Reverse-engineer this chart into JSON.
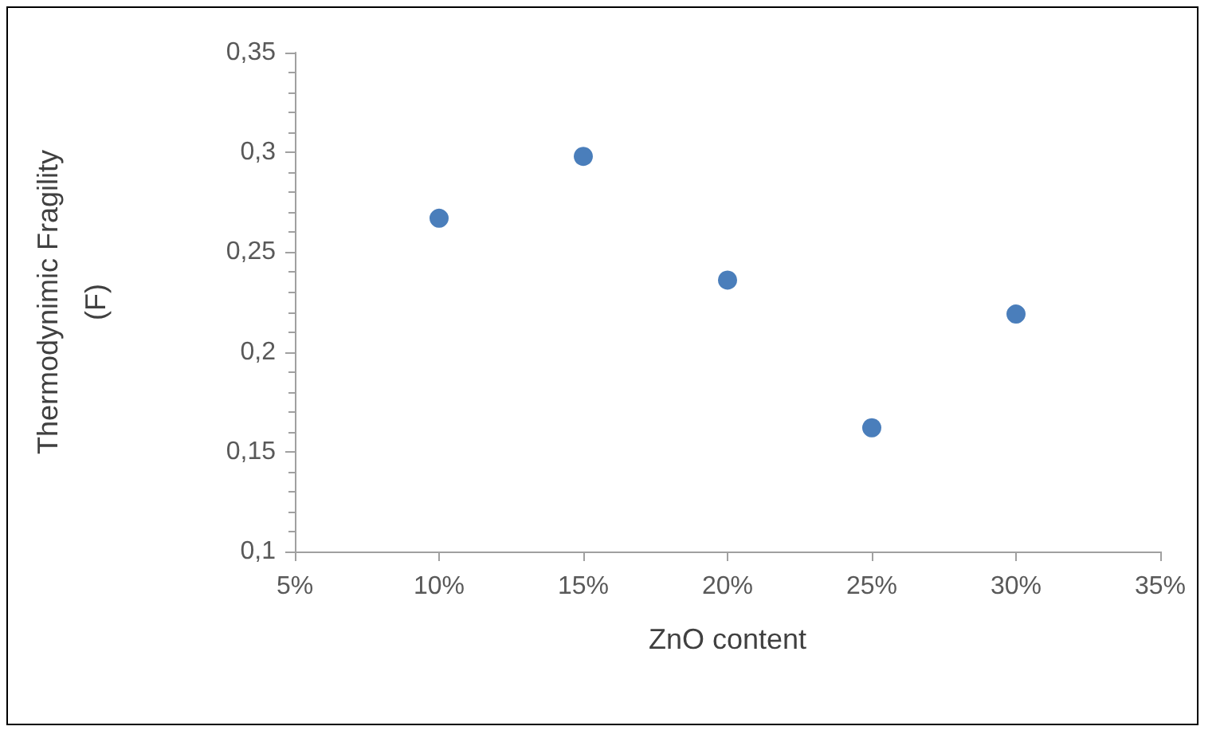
{
  "chart_data": {
    "type": "scatter",
    "xlabel": "ZnO content",
    "ylabel": "Thermodynimic Fragility\n(F)",
    "x": [
      10,
      15,
      20,
      25,
      30
    ],
    "series": [
      {
        "color": "#4a7ebb",
        "values": [
          0.267,
          0.298,
          0.236,
          0.162,
          0.219
        ]
      }
    ],
    "xlim": [
      5,
      35
    ],
    "xticks": [
      {
        "value": 5,
        "label": "5%"
      },
      {
        "value": 10,
        "label": "10%"
      },
      {
        "value": 15,
        "label": "15%"
      },
      {
        "value": 20,
        "label": "20%"
      },
      {
        "value": 25,
        "label": "25%"
      },
      {
        "value": 30,
        "label": "30%"
      },
      {
        "value": 35,
        "label": "35%"
      }
    ],
    "ylim": [
      0.1,
      0.35
    ],
    "yticks": [
      {
        "value": 0.1,
        "label": "0,1"
      },
      {
        "value": 0.15,
        "label": "0,15"
      },
      {
        "value": 0.2,
        "label": "0,2"
      },
      {
        "value": 0.25,
        "label": "0,25"
      },
      {
        "value": 0.3,
        "label": "0,3"
      },
      {
        "value": 0.35,
        "label": "0,35"
      }
    ],
    "grid": false,
    "marker": "circle"
  }
}
